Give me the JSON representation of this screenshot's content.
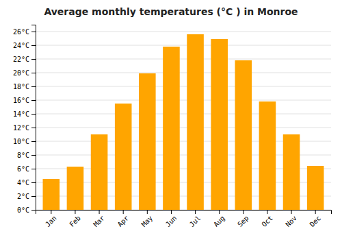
{
  "chart_data": {
    "type": "bar",
    "title": "Average monthly temperatures (°C ) in Monroe",
    "categories": [
      "Jan",
      "Feb",
      "Mar",
      "Apr",
      "May",
      "Jun",
      "Jul",
      "Aug",
      "Sep",
      "Oct",
      "Nov",
      "Dec"
    ],
    "values": [
      4.5,
      6.3,
      11.0,
      15.5,
      19.9,
      23.8,
      25.6,
      24.9,
      21.8,
      15.8,
      11.0,
      6.4
    ],
    "color": "#FFA500",
    "ylim": [
      0,
      27
    ],
    "yticks": [
      {
        "value": 0,
        "label": "0°C"
      },
      {
        "value": 2,
        "label": "2°C"
      },
      {
        "value": 4,
        "label": "4°C"
      },
      {
        "value": 6,
        "label": "6°C"
      },
      {
        "value": 8,
        "label": "8°C"
      },
      {
        "value": 10,
        "label": "10°C"
      },
      {
        "value": 12,
        "label": "12°C"
      },
      {
        "value": 14,
        "label": "14°C"
      },
      {
        "value": 16,
        "label": "16°C"
      },
      {
        "value": 18,
        "label": "18°C"
      },
      {
        "value": 20,
        "label": "20°C"
      },
      {
        "value": 22,
        "label": "22°C"
      },
      {
        "value": 24,
        "label": "24°C"
      },
      {
        "value": 26,
        "label": "26°C"
      }
    ],
    "grid": true
  }
}
